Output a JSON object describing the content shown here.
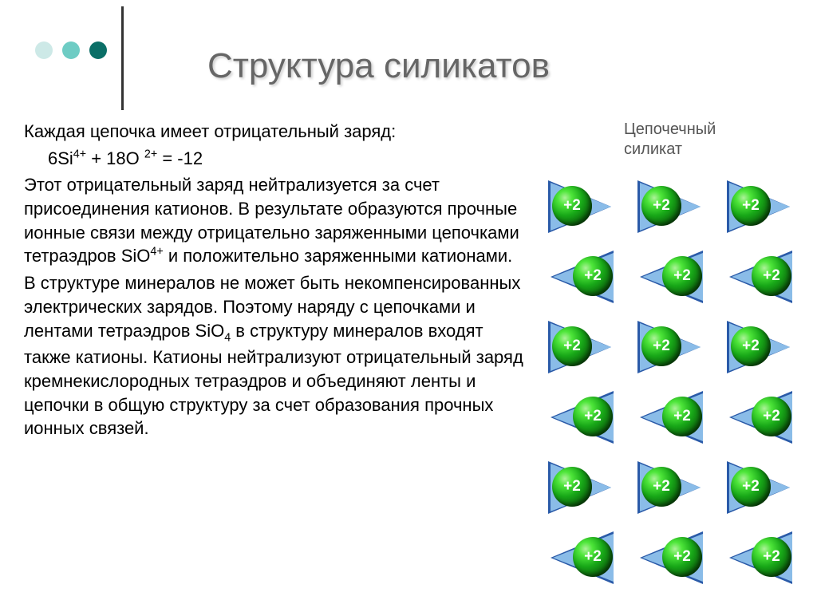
{
  "dots": {
    "colors": [
      "#cde9e7",
      "#6eccc4",
      "#0b6f67"
    ]
  },
  "title": "Структура силикатов",
  "content": {
    "p1": "Каждая цепочка имеет отрицательный заряд:",
    "formula_html": "6Si<sup>4+</sup> + 18O <sup>2+</sup> = -12",
    "p2_html": "Этот отрицательный заряд нейтрализуется за счет присоединения катионов. В результате образуются прочные ионные связи между отрицательно заряженными цепочками тетраэдров SiO<sup>4+</sup> и положительно заряженными катионами.",
    "p3_html": "В структуре минералов не может быть некомпенсированных электрических зарядов. Поэтому наряду с цепочками и лентами тетраэдров SiO<sub>4</sub> в структуру минералов входят также катионы. Катионы нейтрализуют отрицательный заряд кремнекислородных тетраэдров и объединяют ленты и цепочки в общую структуру за счет образования прочных ионных связей."
  },
  "diagram": {
    "label_line1": "Цепочечный",
    "label_line2": "силикат",
    "triangle_fill": "#8abce8",
    "triangle_stroke": "#2a5aa8",
    "sphere_label": "+2",
    "chains": 3,
    "units_per_chain": 6,
    "chain_x": [
      0,
      112,
      224
    ],
    "unit_height": 88,
    "triangle_base": 76,
    "triangle_height": 60,
    "sphere_size": 50
  }
}
